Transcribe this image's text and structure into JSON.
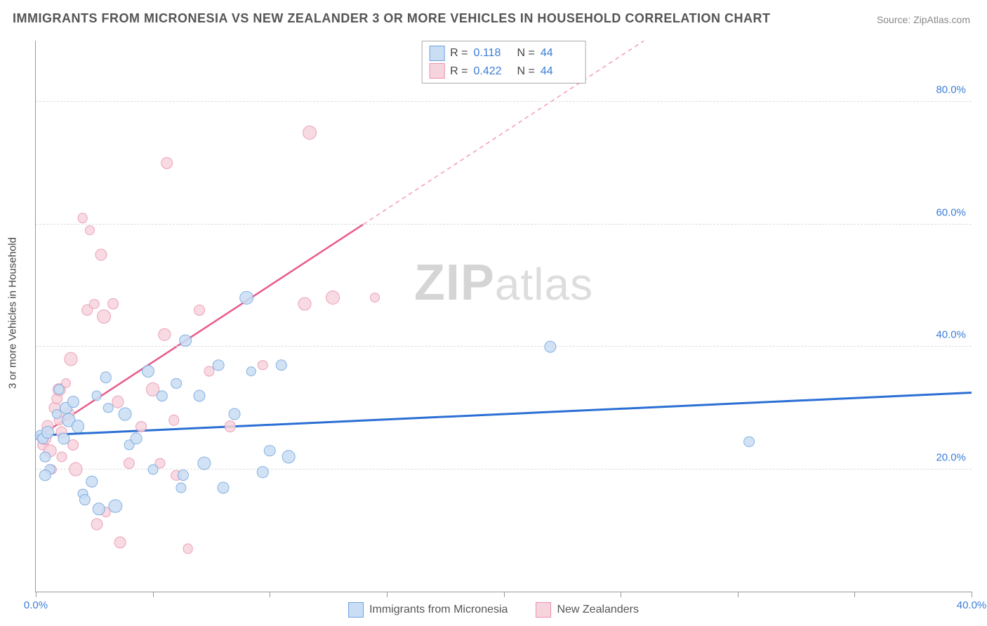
{
  "title": "IMMIGRANTS FROM MICRONESIA VS NEW ZEALANDER 3 OR MORE VEHICLES IN HOUSEHOLD CORRELATION CHART",
  "source": "Source: ZipAtlas.com",
  "ylabel": "3 or more Vehicles in Household",
  "watermark": {
    "bold": "ZIP",
    "rest": "atlas"
  },
  "axes": {
    "xlim": [
      0,
      40
    ],
    "ylim": [
      0,
      90
    ],
    "xtick_positions": [
      0,
      5,
      10,
      15,
      20,
      25,
      30,
      35,
      40
    ],
    "xtick_labels": {
      "0": "0.0%",
      "40": "40.0%"
    },
    "ytick_positions": [
      20,
      40,
      60,
      80
    ],
    "ytick_labels": [
      "20.0%",
      "40.0%",
      "60.0%",
      "80.0%"
    ],
    "grid_color": "#dddddd",
    "axis_color": "#999999"
  },
  "series": [
    {
      "name": "Immigrants from Micronesia",
      "fill": "#c9def4",
      "stroke": "#6fa3de",
      "line_color": "#2b6fd4",
      "line_width": 3,
      "R": "0.118",
      "N": "44",
      "trend": {
        "x1": 0,
        "y1": 25.5,
        "x2": 40,
        "y2": 32.5,
        "dash": false
      },
      "points": [
        [
          0.2,
          25.5
        ],
        [
          0.3,
          25
        ],
        [
          0.5,
          26
        ],
        [
          0.4,
          22
        ],
        [
          0.6,
          20
        ],
        [
          0.4,
          19
        ],
        [
          0.9,
          29
        ],
        [
          1.0,
          33
        ],
        [
          1.2,
          25
        ],
        [
          1.3,
          30
        ],
        [
          1.4,
          28
        ],
        [
          1.6,
          31
        ],
        [
          1.8,
          27
        ],
        [
          2.0,
          16
        ],
        [
          2.1,
          15
        ],
        [
          2.4,
          18
        ],
        [
          2.6,
          32
        ],
        [
          2.7,
          13.5
        ],
        [
          3.0,
          35
        ],
        [
          3.1,
          30
        ],
        [
          3.4,
          14
        ],
        [
          3.8,
          29
        ],
        [
          4.0,
          24
        ],
        [
          4.3,
          25
        ],
        [
          4.8,
          36
        ],
        [
          5.0,
          20
        ],
        [
          5.4,
          32
        ],
        [
          6.0,
          34
        ],
        [
          6.2,
          17
        ],
        [
          6.3,
          19
        ],
        [
          6.4,
          41
        ],
        [
          7.0,
          32
        ],
        [
          7.2,
          21
        ],
        [
          7.8,
          37
        ],
        [
          8.0,
          17
        ],
        [
          8.5,
          29
        ],
        [
          9.0,
          48
        ],
        [
          9.2,
          36
        ],
        [
          9.7,
          19.5
        ],
        [
          10.0,
          23
        ],
        [
          10.5,
          37
        ],
        [
          10.8,
          22
        ],
        [
          22.0,
          40
        ],
        [
          30.5,
          24.5
        ]
      ]
    },
    {
      "name": "New Zealanders",
      "fill": "#f6d4dd",
      "stroke": "#eb91ac",
      "line_color": "#ea5a8a",
      "line_width": 2.5,
      "R": "0.422",
      "N": "44",
      "trend": {
        "x1": 0,
        "y1": 25,
        "x2": 14,
        "y2": 60,
        "ext_x": 26,
        "ext_y": 90,
        "dash": true
      },
      "points": [
        [
          0.3,
          24
        ],
        [
          0.4,
          25
        ],
        [
          0.5,
          27
        ],
        [
          0.6,
          23
        ],
        [
          0.7,
          20
        ],
        [
          0.8,
          30
        ],
        [
          0.9,
          31.5
        ],
        [
          1.0,
          33
        ],
        [
          1.0,
          28
        ],
        [
          1.1,
          22
        ],
        [
          1.1,
          26
        ],
        [
          1.3,
          34
        ],
        [
          1.4,
          29
        ],
        [
          1.5,
          38
        ],
        [
          1.6,
          24
        ],
        [
          1.7,
          20
        ],
        [
          2.0,
          61
        ],
        [
          2.2,
          46
        ],
        [
          2.3,
          59
        ],
        [
          2.5,
          47
        ],
        [
          2.6,
          11
        ],
        [
          2.8,
          55
        ],
        [
          2.9,
          45
        ],
        [
          3.0,
          13
        ],
        [
          3.3,
          47
        ],
        [
          3.5,
          31
        ],
        [
          3.6,
          8
        ],
        [
          4.0,
          21
        ],
        [
          4.5,
          27
        ],
        [
          5.0,
          33
        ],
        [
          5.3,
          21
        ],
        [
          5.6,
          70
        ],
        [
          5.9,
          28
        ],
        [
          6.0,
          19
        ],
        [
          6.5,
          7
        ],
        [
          7.0,
          46
        ],
        [
          7.4,
          36
        ],
        [
          8.3,
          27
        ],
        [
          9.7,
          37
        ],
        [
          11.5,
          47
        ],
        [
          11.7,
          75
        ],
        [
          12.7,
          48
        ],
        [
          14.5,
          48
        ],
        [
          5.5,
          42
        ]
      ]
    }
  ],
  "stats_labels": {
    "R": "R =",
    "N": "N ="
  },
  "legend_labels": [
    "Immigrants from Micronesia",
    "New Zealanders"
  ]
}
